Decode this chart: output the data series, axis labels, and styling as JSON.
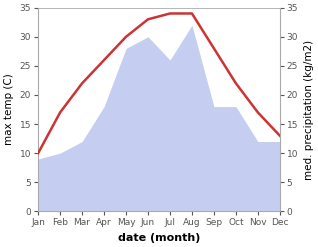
{
  "months": [
    "Jan",
    "Feb",
    "Mar",
    "Apr",
    "May",
    "Jun",
    "Jul",
    "Aug",
    "Sep",
    "Oct",
    "Nov",
    "Dec"
  ],
  "temperature": [
    10,
    17,
    22,
    26,
    30,
    33,
    34,
    34,
    28,
    22,
    17,
    13
  ],
  "precipitation": [
    9,
    10,
    12,
    18,
    28,
    30,
    26,
    32,
    18,
    18,
    12,
    12
  ],
  "temp_color": "#cc3333",
  "precip_fill_color": "#c5cef0",
  "background_color": "#ffffff",
  "ylabel_left": "max temp (C)",
  "ylabel_right": "med. precipitation (kg/m2)",
  "xlabel": "date (month)",
  "ylim": [
    0,
    35
  ],
  "yticks": [
    0,
    5,
    10,
    15,
    20,
    25,
    30,
    35
  ],
  "temp_linewidth": 1.8,
  "xlabel_fontsize": 8,
  "ylabel_fontsize": 7.5,
  "tick_fontsize": 6.5
}
